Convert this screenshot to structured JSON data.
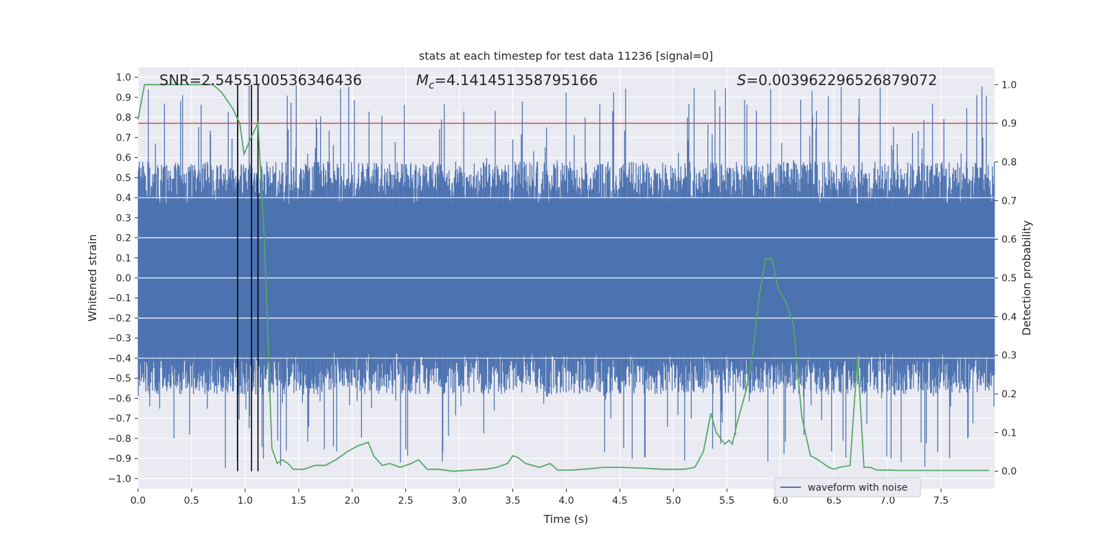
{
  "chart_data": {
    "type": "line",
    "title": "stats at each timestep for test data 11236 [signal=0]",
    "xlabel": "Time (s)",
    "ylabel": "Whitened strain",
    "y2label": "Detection probability",
    "xlim": [
      0,
      8
    ],
    "ylim": [
      -1.05,
      1.05
    ],
    "y2lim": [
      -0.045,
      1.045
    ],
    "xticks": [
      "0.0",
      "0.5",
      "1.0",
      "1.5",
      "2.0",
      "2.5",
      "3.0",
      "3.5",
      "4.0",
      "4.5",
      "5.0",
      "5.5",
      "6.0",
      "6.5",
      "7.0",
      "7.5"
    ],
    "yticks": [
      "1.0",
      "0.9",
      "0.8",
      "0.7",
      "0.6",
      "0.5",
      "0.4",
      "0.3",
      "0.2",
      "0.1",
      "0.0",
      "-0.1",
      "-0.2",
      "-0.3",
      "-0.4",
      "-0.5",
      "-0.6",
      "-0.7",
      "-0.8",
      "-0.9",
      "-1.0"
    ],
    "y2ticks": [
      "1.0",
      "0.9",
      "0.8",
      "0.7",
      "0.6",
      "0.5",
      "0.4",
      "0.3",
      "0.2",
      "0.1",
      "0.0"
    ],
    "grid": true,
    "legend": {
      "placement": "lower-right",
      "entries": [
        "waveform with noise"
      ]
    },
    "annotations": {
      "snr": "SNR=2.5455100536346436",
      "mc_symbol": "M",
      "mc_sub": "c",
      "mc_value": "=4.141451358795166",
      "s_symbol": "S",
      "s_value": "=0.003962296526879072"
    },
    "threshold": {
      "y2": 0.9,
      "color": "#c44e52"
    },
    "vlines_x": [
      0.93,
      1.06,
      1.12
    ],
    "series": [
      {
        "name": "waveform with noise",
        "axis": "left",
        "color": "#4c72b0",
        "kind": "noise",
        "typical_amplitude": 0.43,
        "peak_max": 0.96,
        "peak_min": -0.95
      },
      {
        "axis": "right",
        "color": "#55a868",
        "x": [
          0.0,
          0.06,
          0.15,
          0.3,
          0.5,
          0.7,
          0.78,
          0.88,
          0.95,
          0.99,
          1.05,
          1.12,
          1.18,
          1.25,
          1.3,
          1.35,
          1.4,
          1.45,
          1.55,
          1.65,
          1.75,
          1.85,
          1.95,
          2.05,
          2.15,
          2.2,
          2.28,
          2.35,
          2.45,
          2.55,
          2.62,
          2.7,
          2.8,
          2.95,
          3.1,
          3.25,
          3.35,
          3.45,
          3.5,
          3.55,
          3.62,
          3.75,
          3.85,
          3.92,
          4.05,
          4.2,
          4.35,
          4.5,
          4.7,
          4.9,
          5.1,
          5.2,
          5.28,
          5.35,
          5.4,
          5.48,
          5.52,
          5.55,
          5.6,
          5.68,
          5.74,
          5.8,
          5.86,
          5.92,
          5.98,
          6.05,
          6.12,
          6.2,
          6.28,
          6.35,
          6.45,
          6.5,
          6.55,
          6.65,
          6.72,
          6.78,
          6.84,
          6.9,
          6.95,
          7.02,
          7.1,
          7.3,
          7.6,
          7.95
        ],
        "y": [
          0.91,
          1.0,
          1.0,
          1.0,
          1.0,
          1.0,
          0.98,
          0.94,
          0.9,
          0.82,
          0.86,
          0.9,
          0.6,
          0.06,
          0.02,
          0.03,
          0.02,
          0.005,
          0.005,
          0.015,
          0.015,
          0.03,
          0.05,
          0.065,
          0.075,
          0.04,
          0.015,
          0.02,
          0.01,
          0.02,
          0.03,
          0.005,
          0.005,
          0.0,
          0.003,
          0.005,
          0.01,
          0.02,
          0.04,
          0.035,
          0.02,
          0.01,
          0.02,
          0.003,
          0.003,
          0.006,
          0.01,
          0.01,
          0.008,
          0.005,
          0.005,
          0.01,
          0.05,
          0.15,
          0.1,
          0.07,
          0.08,
          0.07,
          0.13,
          0.21,
          0.3,
          0.45,
          0.55,
          0.55,
          0.47,
          0.44,
          0.38,
          0.14,
          0.04,
          0.03,
          0.01,
          0.005,
          0.01,
          0.015,
          0.3,
          0.01,
          0.01,
          0.003,
          0.003,
          0.003,
          0.002,
          0.002,
          0.002,
          0.002
        ]
      }
    ]
  }
}
